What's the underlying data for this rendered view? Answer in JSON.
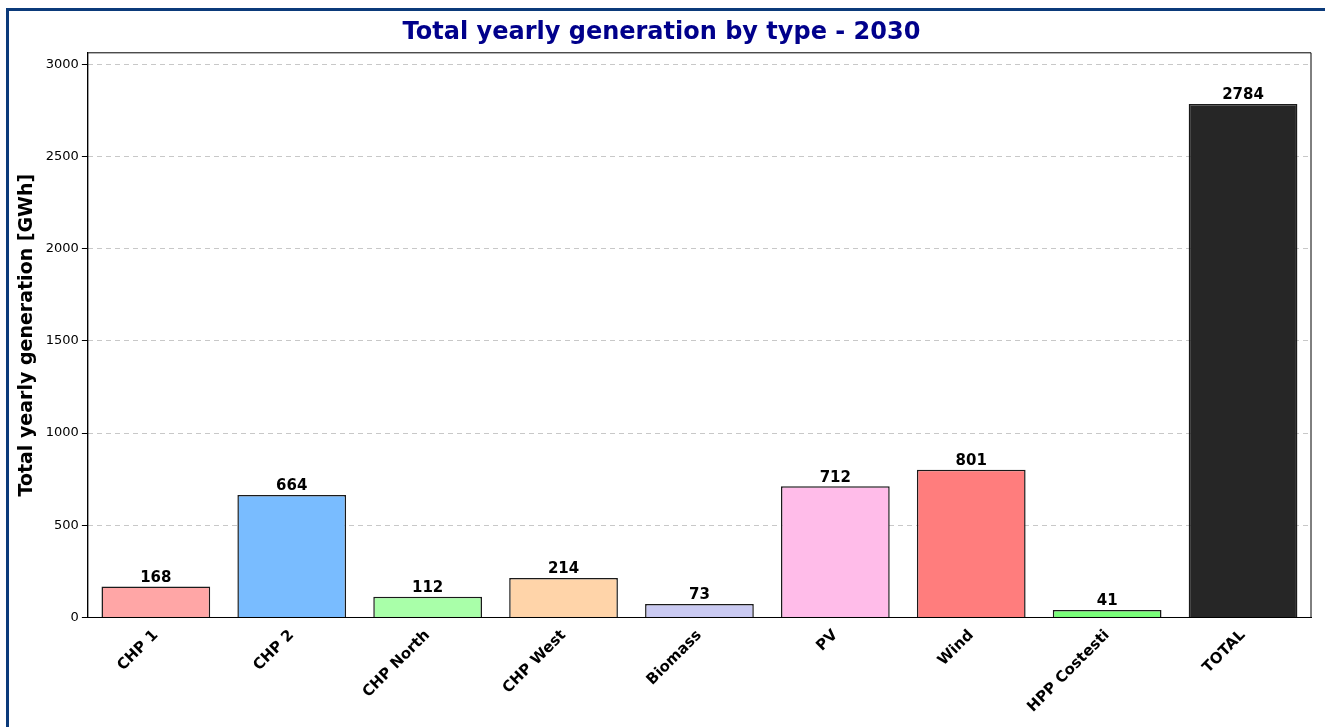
{
  "chart_data": {
    "type": "bar",
    "title": "Total yearly generation by type - 2030",
    "ylabel": "Total yearly generation [GWh]",
    "categories": [
      "CHP 1",
      "CHP 2",
      "CHP North",
      "CHP West",
      "Biomass",
      "PV",
      "Wind",
      "HPP Costesti",
      "TOTAL"
    ],
    "values": [
      168,
      664,
      112,
      214,
      73,
      712,
      801,
      41,
      2784
    ],
    "colors": [
      "#ffa6a6",
      "#79bcff",
      "#a9ffa9",
      "#ffd4a9",
      "#cacaf2",
      "#ffbce9",
      "#ff7d7d",
      "#79ff79",
      "#262626"
    ],
    "ylim": [
      0,
      3062
    ],
    "yticks": [
      0,
      500,
      1000,
      1500,
      2000,
      2500,
      3000
    ],
    "grid": "y",
    "data_labels": true,
    "legend": false
  }
}
